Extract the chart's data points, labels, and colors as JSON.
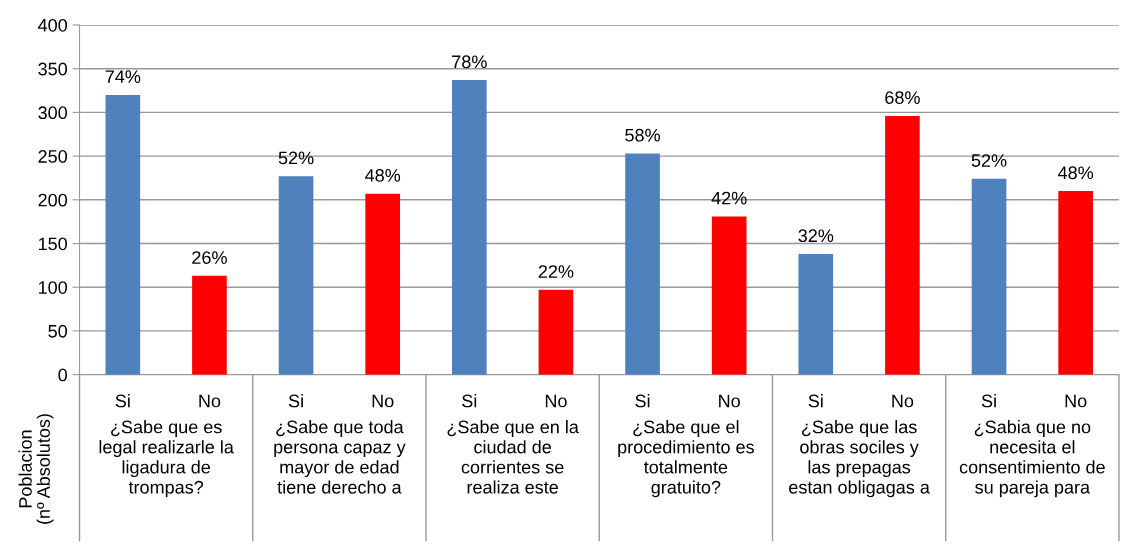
{
  "chart_data": {
    "type": "bar",
    "ylabel": "Poblacion\n(nº Absolutos)",
    "categories": [
      "Si",
      "No",
      "Si",
      "No",
      "Si",
      "No",
      "Si",
      "No",
      "Si",
      "No",
      "Si",
      "No"
    ],
    "values": [
      320,
      113,
      227,
      207,
      337,
      97,
      253,
      181,
      138,
      296,
      224,
      210
    ],
    "colors": [
      "#4f81bd",
      "#ff0000",
      "#4f81bd",
      "#ff0000",
      "#4f81bd",
      "#ff0000",
      "#4f81bd",
      "#ff0000",
      "#4f81bd",
      "#ff0000",
      "#4f81bd",
      "#ff0000"
    ],
    "annotations": [
      "¿Sabe que es\nlegal realizarle la\nligadura de\ntrompas?",
      "¿Sabe que toda\npersona capaz y\nmayor de edad\ntiene derecho a",
      "¿Sabe que en la\nciudad de\ncorrientes se\nrealiza este",
      "¿Sabe que el\nprocedimiento es\ntotalmente\ngratuito?",
      "¿Sabe que las\nobras sociles y\nlas prepagas\nestan obligagas a",
      "¿Sabia que no\nnecesita el\nconsentimiento de\nsu pareja para",
      {
        "text": "74%",
        "y": 320
      },
      {
        "text": "26%",
        "y": 113
      },
      {
        "text": "52%",
        "y": 227
      },
      {
        "text": "48%",
        "y": 207
      },
      {
        "text": "78%",
        "y": 337
      },
      {
        "text": "22%",
        "y": 97
      },
      {
        "text": "58%",
        "y": 253
      },
      {
        "text": "42%",
        "y": 181
      },
      {
        "text": "32%",
        "y": 138
      },
      {
        "text": "68%",
        "y": 296
      },
      {
        "text": "52%",
        "y": 224
      },
      {
        "text": "48%",
        "y": 210
      }
    ],
    "ylim": [
      0,
      400
    ],
    "yticks": [
      0,
      50,
      100,
      150,
      200,
      250,
      300,
      350,
      400
    ],
    "grid": "y"
  }
}
